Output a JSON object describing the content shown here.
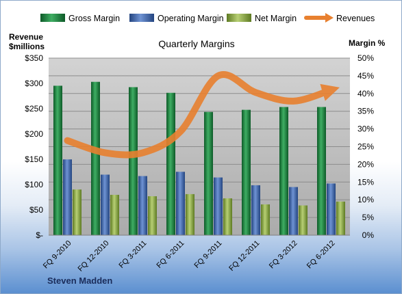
{
  "chart_data": {
    "type": "bar",
    "title": "Quarterly Margins",
    "company": "Steven Madden",
    "y_left_label_line1": "Revenue",
    "y_left_label_line2": "$millions",
    "y_right_label": "Margin %",
    "categories": [
      "FQ 9-2010",
      "FQ 12-2010",
      "FQ 3-2011",
      "FQ 6-2011",
      "FQ 9-2011",
      "FQ 12-2011",
      "FQ 3-2012",
      "FQ 6-2012"
    ],
    "left_ticks": [
      "$-",
      "$50",
      "$100",
      "$150",
      "$200",
      "$250",
      "$300",
      "$350"
    ],
    "right_ticks": [
      "0%",
      "5%",
      "10%",
      "15%",
      "20%",
      "25%",
      "30%",
      "35%",
      "40%",
      "45%",
      "50%"
    ],
    "ylim_left": [
      0,
      350
    ],
    "ylim_right": [
      0,
      50
    ],
    "grid": true,
    "legend_position": "top",
    "series": [
      {
        "name": "Gross Margin",
        "axis": "right",
        "kind": "bar",
        "color": "#1f7a3f",
        "values": [
          42.2,
          43.3,
          41.8,
          40.2,
          34.8,
          35.4,
          36.2,
          36.2
        ]
      },
      {
        "name": "Operating Margin",
        "axis": "right",
        "kind": "bar",
        "color": "#3e63a8",
        "values": [
          21.4,
          17.1,
          16.7,
          17.9,
          16.3,
          14.1,
          13.6,
          14.6
        ]
      },
      {
        "name": "Net Margin",
        "axis": "right",
        "kind": "bar",
        "color": "#8aa83f",
        "values": [
          12.9,
          11.4,
          11.0,
          11.6,
          10.4,
          8.7,
          8.4,
          9.5
        ]
      },
      {
        "name": "Revenues",
        "axis": "left",
        "kind": "line",
        "color": "#e8802f",
        "values": [
          187,
          163,
          163,
          205,
          315,
          282,
          265,
          287
        ]
      }
    ]
  }
}
